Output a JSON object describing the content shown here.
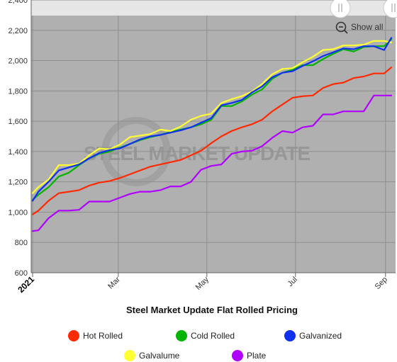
{
  "chart_data": {
    "type": "line",
    "title": "Steel Market Update Flat Rolled Pricing",
    "watermark": "STEEL MARKET UPDATE",
    "show_all_label": "Show all",
    "ylim": [
      600,
      2400
    ],
    "y_ticks": [
      600,
      800,
      1000,
      1200,
      1400,
      1600,
      1800,
      2000,
      2200,
      2400
    ],
    "y_tick_labels": [
      "600",
      "800",
      "1,000",
      "1,200",
      "1,400",
      "1,600",
      "1,800",
      "2,000",
      "2,200",
      "2,400"
    ],
    "x_range": [
      "2021-01-01",
      "2021-09-05"
    ],
    "x_ticks": [
      {
        "date": "2021-01-01",
        "label": "2021",
        "bold": true
      },
      {
        "date": "2021-03-01",
        "label": "Mar",
        "bold": false
      },
      {
        "date": "2021-05-01",
        "label": "May",
        "bold": false
      },
      {
        "date": "2021-07-01",
        "label": "Jul",
        "bold": false
      },
      {
        "date": "2021-09-01",
        "label": "Sep",
        "bold": false
      }
    ],
    "grid": true,
    "legend_position": "bottom",
    "plot_background": "#b0b0b0",
    "x": [
      "2021-01-01",
      "2021-01-05",
      "2021-01-12",
      "2021-01-19",
      "2021-01-26",
      "2021-02-02",
      "2021-02-09",
      "2021-02-16",
      "2021-02-23",
      "2021-03-02",
      "2021-03-09",
      "2021-03-16",
      "2021-03-23",
      "2021-03-30",
      "2021-04-06",
      "2021-04-13",
      "2021-04-20",
      "2021-04-27",
      "2021-05-04",
      "2021-05-11",
      "2021-05-18",
      "2021-05-25",
      "2021-06-01",
      "2021-06-08",
      "2021-06-15",
      "2021-06-22",
      "2021-06-29",
      "2021-07-06",
      "2021-07-13",
      "2021-07-20",
      "2021-07-27",
      "2021-08-03",
      "2021-08-10",
      "2021-08-17",
      "2021-08-24",
      "2021-08-31",
      "2021-09-05"
    ],
    "series": [
      {
        "name": "Hot Rolled",
        "color": "#ff2a00",
        "values": [
          985,
          1010,
          1075,
          1125,
          1135,
          1145,
          1175,
          1195,
          1205,
          1225,
          1250,
          1275,
          1300,
          1315,
          1330,
          1345,
          1375,
          1405,
          1455,
          1500,
          1535,
          1560,
          1580,
          1610,
          1665,
          1710,
          1755,
          1765,
          1770,
          1820,
          1845,
          1855,
          1885,
          1895,
          1915,
          1915,
          1955
        ]
      },
      {
        "name": "Cold Rolled",
        "color": "#00b400",
        "values": [
          1080,
          1115,
          1165,
          1235,
          1260,
          1310,
          1355,
          1385,
          1400,
          1425,
          1450,
          1475,
          1495,
          1510,
          1530,
          1545,
          1560,
          1580,
          1610,
          1700,
          1700,
          1730,
          1775,
          1810,
          1880,
          1920,
          1940,
          1970,
          1970,
          2010,
          2045,
          2075,
          2060,
          2090,
          2095,
          2095,
          2140
        ]
      },
      {
        "name": "Galvanized",
        "color": "#1030f0",
        "values": [
          1075,
          1135,
          1200,
          1275,
          1295,
          1315,
          1355,
          1390,
          1410,
          1420,
          1450,
          1480,
          1500,
          1510,
          1525,
          1540,
          1560,
          1590,
          1620,
          1705,
          1720,
          1740,
          1790,
          1830,
          1890,
          1920,
          1930,
          1965,
          1995,
          2030,
          2055,
          2080,
          2075,
          2095,
          2095,
          2070,
          2150
        ]
      },
      {
        "name": "Galvalume",
        "color": "#ffff33",
        "values": [
          1125,
          1165,
          1215,
          1310,
          1310,
          1320,
          1375,
          1420,
          1415,
          1445,
          1495,
          1505,
          1515,
          1545,
          1535,
          1565,
          1610,
          1635,
          1650,
          1720,
          1745,
          1765,
          1795,
          1845,
          1910,
          1945,
          1950,
          1990,
          2025,
          2070,
          2075,
          2100,
          2100,
          2105,
          2130,
          2130,
          2120
        ]
      },
      {
        "name": "Plate",
        "color": "#b000ff",
        "values": [
          875,
          880,
          960,
          1010,
          1010,
          1015,
          1070,
          1070,
          1070,
          1095,
          1120,
          1135,
          1135,
          1145,
          1170,
          1170,
          1200,
          1280,
          1305,
          1315,
          1385,
          1400,
          1405,
          1435,
          1490,
          1535,
          1525,
          1560,
          1570,
          1645,
          1645,
          1665,
          1665,
          1665,
          1770,
          1770,
          1770
        ]
      }
    ]
  },
  "colors": {
    "plot_background": "#b0b0b0",
    "grid": "#8e8e8e",
    "navigator": "#e6e6e6"
  },
  "icons": {
    "zoom_out": "zoom-out-icon",
    "navigator_handle": "navigator-handle-icon"
  }
}
